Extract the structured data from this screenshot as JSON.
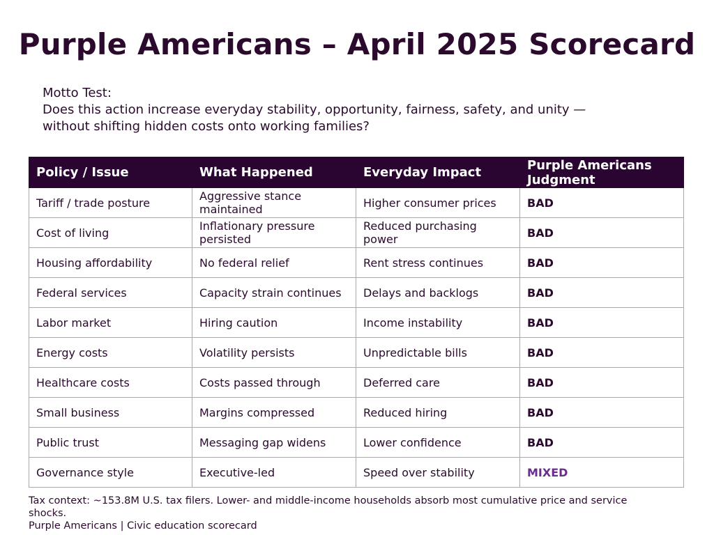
{
  "title": "Purple Americans – April 2025 Scorecard",
  "motto": {
    "heading": "Motto Test:",
    "line1": "Does this action increase everyday stability, opportunity, fairness, safety, and unity —",
    "line2": "without shifting hidden costs onto working families?"
  },
  "table": {
    "headers": [
      "Policy / Issue",
      "What Happened",
      "Everyday Impact",
      "Purple Americans Judgment"
    ],
    "rows": [
      {
        "issue": "Tariff / trade posture",
        "happened": "Aggressive stance maintained",
        "impact": "Higher consumer prices",
        "judgment": "BAD"
      },
      {
        "issue": "Cost of living",
        "happened": "Inflationary pressure persisted",
        "impact": "Reduced purchasing power",
        "judgment": "BAD"
      },
      {
        "issue": "Housing affordability",
        "happened": "No federal relief",
        "impact": "Rent stress continues",
        "judgment": "BAD"
      },
      {
        "issue": "Federal services",
        "happened": "Capacity strain continues",
        "impact": "Delays and backlogs",
        "judgment": "BAD"
      },
      {
        "issue": "Labor market",
        "happened": "Hiring caution",
        "impact": "Income instability",
        "judgment": "BAD"
      },
      {
        "issue": "Energy costs",
        "happened": "Volatility persists",
        "impact": "Unpredictable bills",
        "judgment": "BAD"
      },
      {
        "issue": "Healthcare costs",
        "happened": "Costs passed through",
        "impact": "Deferred care",
        "judgment": "BAD"
      },
      {
        "issue": "Small business",
        "happened": "Margins compressed",
        "impact": "Reduced hiring",
        "judgment": "BAD"
      },
      {
        "issue": "Public trust",
        "happened": "Messaging gap widens",
        "impact": "Lower confidence",
        "judgment": "BAD"
      },
      {
        "issue": "Governance style",
        "happened": "Executive-led",
        "impact": "Speed over stability",
        "judgment": "MIXED"
      }
    ]
  },
  "footer": {
    "tax_context": "Tax context: ~153.8M U.S. tax filers. Lower- and middle-income households absorb most cumulative price and service shocks.",
    "credit": "Purple Americans | Civic education scorecard"
  },
  "colors": {
    "header_bg": "#2b0532",
    "text": "#2b0a2e",
    "bad": "#8a1034",
    "mixed": "#6a2c8e"
  }
}
